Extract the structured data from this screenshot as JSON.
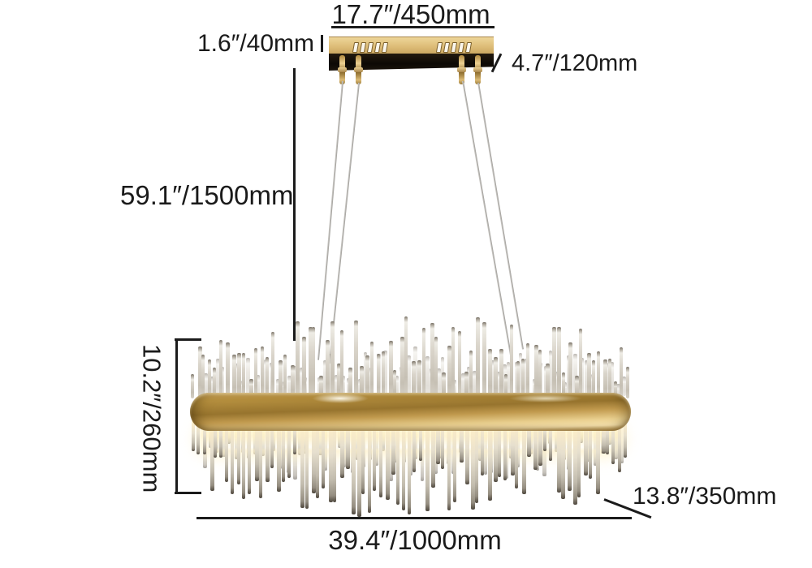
{
  "title": "chandelier-dimension-diagram",
  "dimensions": {
    "canopy_width": "17.7″/450mm",
    "canopy_height": "1.6″/40mm",
    "canopy_depth": "4.7″/120mm",
    "drop_height": "59.1″/1500mm",
    "body_height": "10.2″/260mm",
    "body_width": "39.4″/1000mm",
    "body_depth": "13.8″/350mm"
  },
  "colors": {
    "background": "#ffffff",
    "dimension_line": "#1b1b1b",
    "text": "#1a1a1a",
    "canopy_gold": "#ddbc77",
    "canopy_underside": "#0d0905",
    "band_gold_light": "#f7e3ae",
    "band_gold_dark": "#97742e",
    "led_glow": "#fff2c8",
    "rod_light": "#eeece5",
    "rod_dark": "#4e473d",
    "cable": "#b5b3af"
  }
}
